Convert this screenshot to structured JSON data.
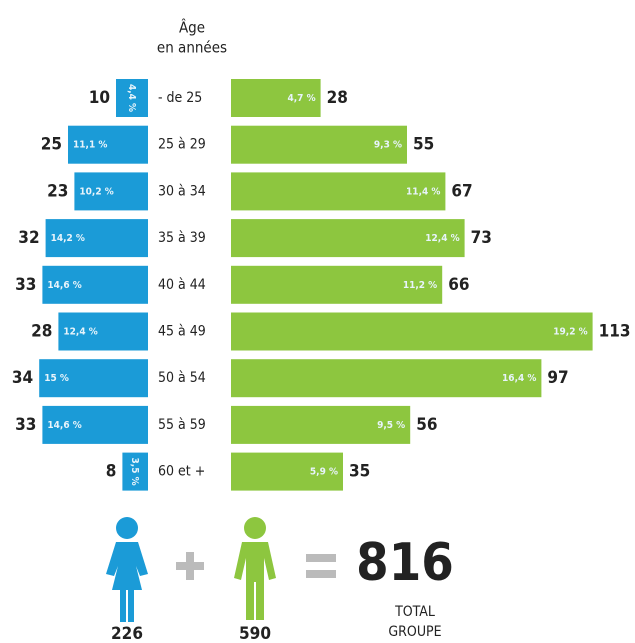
{
  "chart_data": {
    "type": "pyramid",
    "axis_title": [
      "Âge",
      "en années"
    ],
    "categories": [
      "- de 25",
      "25 à 29",
      "30 à 34",
      "35 à 39",
      "40 à 44",
      "45 à 49",
      "50 à 54",
      "55 à 59",
      "60 et +"
    ],
    "series": [
      {
        "color": "#1b9bd7",
        "side": "left",
        "values": [
          10,
          25,
          23,
          32,
          33,
          28,
          34,
          33,
          8
        ],
        "share_labels": [
          "4,4 %",
          "11,1 %",
          "10,2 %",
          "14,2 %",
          "14,6 %",
          "12,4 %",
          "15 %",
          "14,6 %",
          "3,5 %"
        ],
        "total": 226
      },
      {
        "color": "#8dc63f",
        "side": "right",
        "values": [
          28,
          55,
          67,
          73,
          66,
          113,
          97,
          56,
          35
        ],
        "share_labels": [
          "4,7 %",
          "9,3 %",
          "11,4 %",
          "12,4 %",
          "11,2 %",
          "19,2 %",
          "16,4 %",
          "9,5 %",
          "5,9 %"
        ],
        "total": 590
      }
    ],
    "total": 816,
    "total_label": [
      "TOTAL",
      "GROUPE"
    ]
  }
}
